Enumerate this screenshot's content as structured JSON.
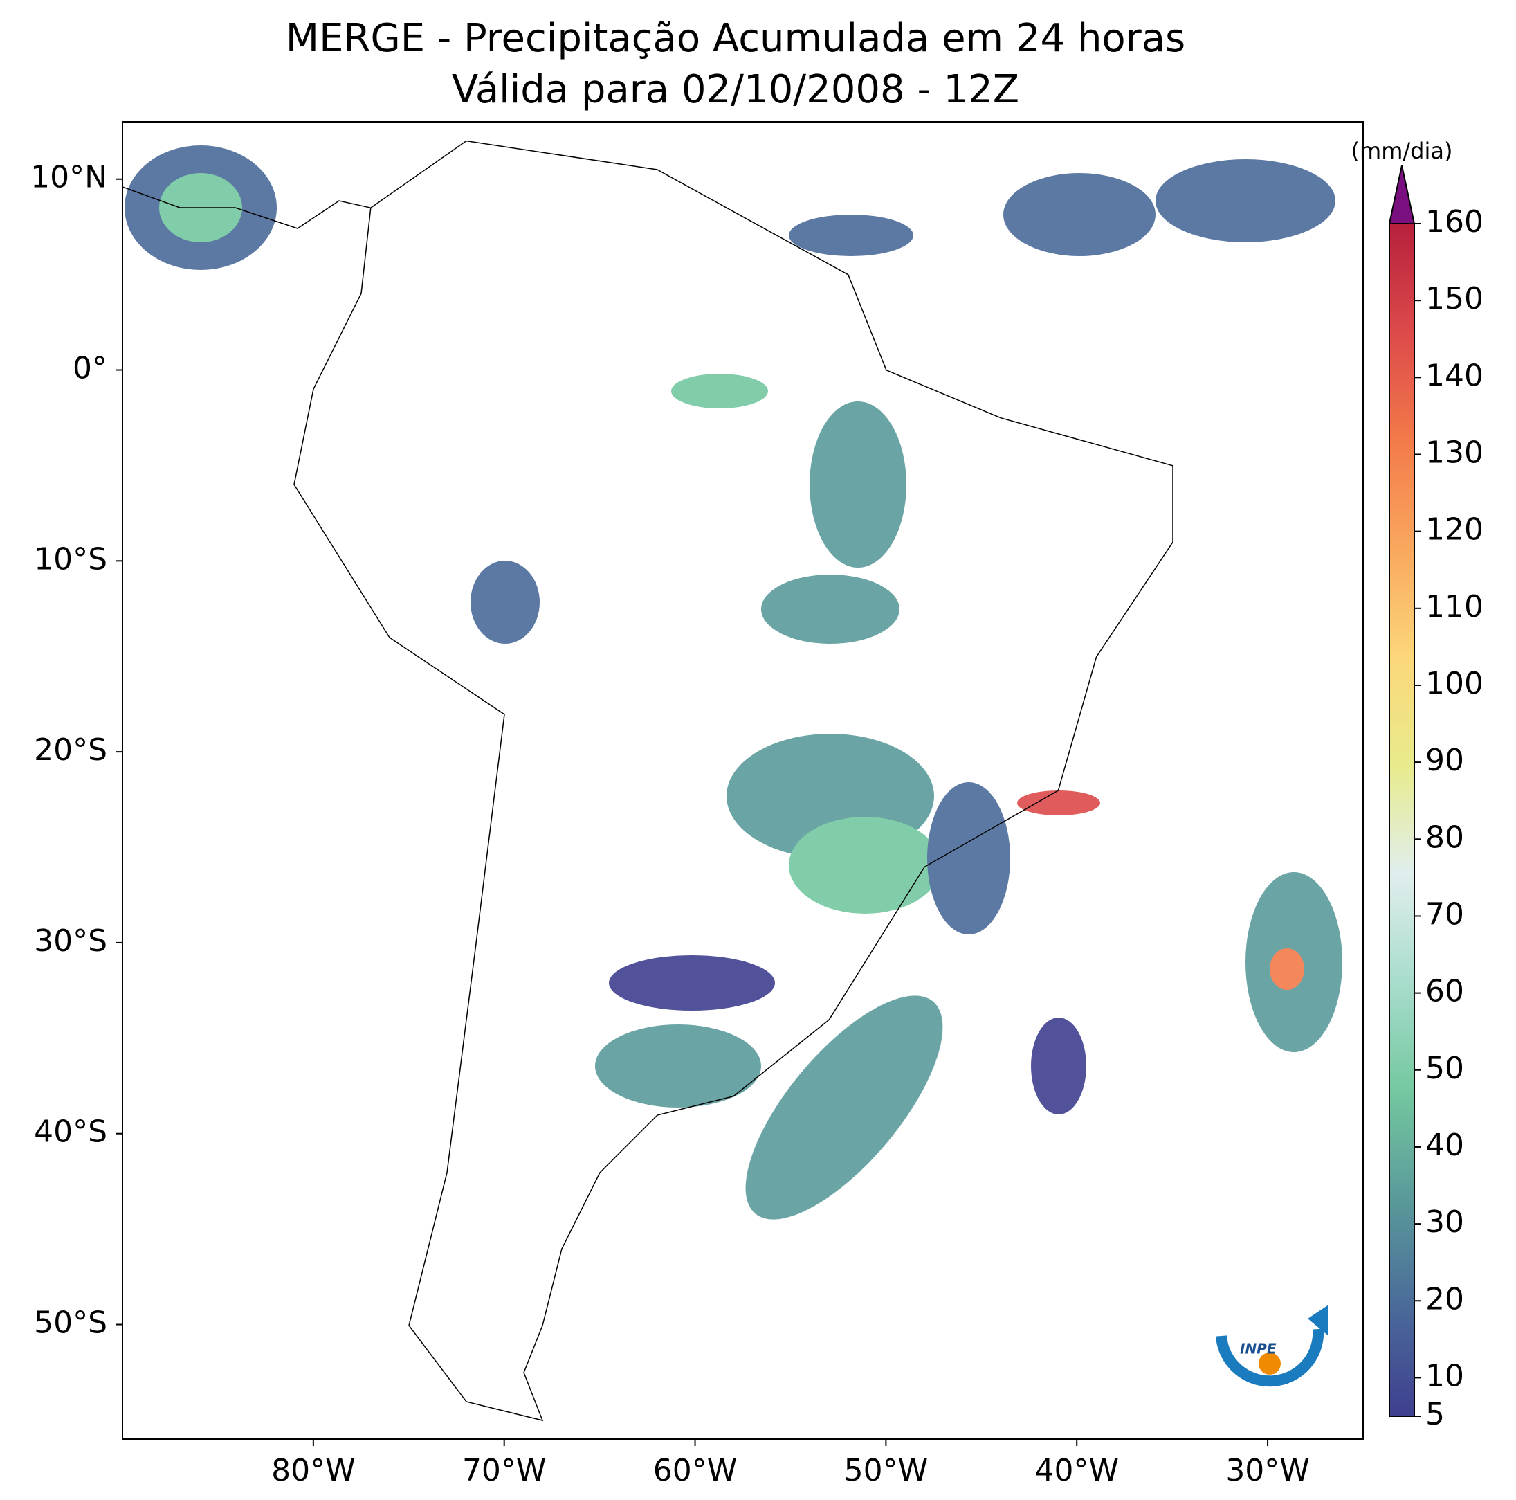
{
  "chart_data": {
    "type": "map",
    "title": "MERGE - Precipitação Acumulada em 24 horas",
    "subtitle": "Válida para 02/10/2008 - 12Z",
    "xlim": [
      -90,
      -25
    ],
    "ylim": [
      -56,
      13
    ],
    "xticks": [
      {
        "value": -80,
        "label": "80°W"
      },
      {
        "value": -70,
        "label": "70°W"
      },
      {
        "value": -60,
        "label": "60°W"
      },
      {
        "value": -50,
        "label": "50°W"
      },
      {
        "value": -40,
        "label": "40°W"
      },
      {
        "value": -30,
        "label": "30°W"
      }
    ],
    "yticks": [
      {
        "value": 10,
        "label": "10°N"
      },
      {
        "value": 0,
        "label": "0°"
      },
      {
        "value": -10,
        "label": "10°S"
      },
      {
        "value": -20,
        "label": "20°S"
      },
      {
        "value": -30,
        "label": "30°S"
      },
      {
        "value": -40,
        "label": "40°S"
      },
      {
        "value": -50,
        "label": "50°S"
      }
    ],
    "colorbar": {
      "label": "(mm/dia)",
      "clim": [
        5,
        160
      ],
      "ticks": [
        5,
        10,
        20,
        30,
        40,
        50,
        60,
        70,
        80,
        90,
        100,
        110,
        120,
        130,
        140,
        150,
        160
      ],
      "colors": [
        "#3f3f8f",
        "#4a6a9a",
        "#5a9a9a",
        "#74c8a0",
        "#a8dccc",
        "#e0eeee",
        "#e8eb8c",
        "#fcd77a",
        "#f9a85e",
        "#f37a4a",
        "#dd4a4a",
        "#b7203c"
      ],
      "extend_color": "#7a1080"
    },
    "logo": "INPE"
  }
}
